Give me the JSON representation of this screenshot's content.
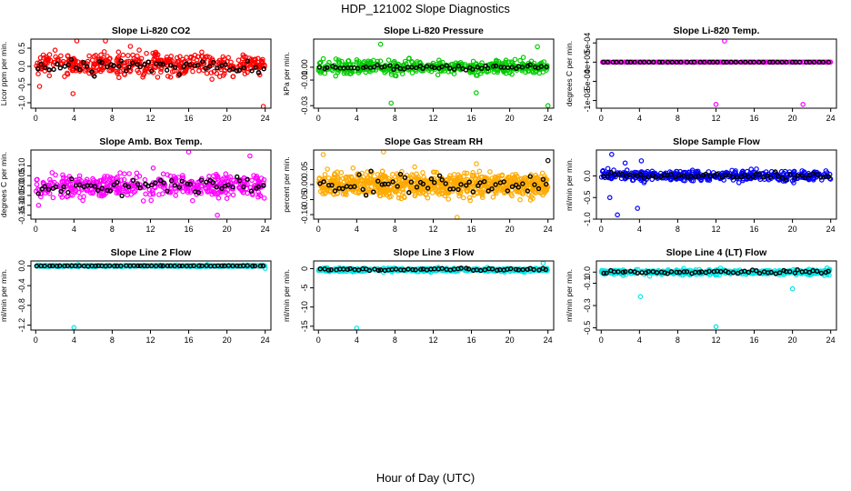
{
  "figure": {
    "title": "HDP_121002  Slope Diagnostics",
    "xlabel": "Hour of Day (UTC)"
  },
  "chart_data": [
    {
      "type": "scatter",
      "title": "Slope Li-820 CO2",
      "ylabel": "Licor ppm per min.",
      "xlim": [
        -0.5,
        24.6
      ],
      "ylim": [
        -1.15,
        0.75
      ],
      "xticks": [
        "0",
        "4",
        "8",
        "12",
        "16",
        "20",
        "24"
      ],
      "yticks": [
        {
          "v": -1.0,
          "label": "-1.0"
        },
        {
          "v": -0.5,
          "label": "-0.5"
        },
        {
          "v": 0.0,
          "label": "0.0"
        },
        {
          "v": 0.5,
          "label": "0.5"
        }
      ],
      "series": [
        {
          "name": "all",
          "color": "#ff0000",
          "n": 450,
          "center": 0.05,
          "spread": 0.28,
          "outliers": [
            [
              4.3,
              0.8
            ],
            [
              7.3,
              0.7
            ],
            [
              23.8,
              -1.1
            ],
            [
              0.4,
              -0.55
            ],
            [
              3.9,
              -0.75
            ],
            [
              9.9,
              0.55
            ]
          ]
        },
        {
          "name": "hourly",
          "color": "#000000",
          "n": 60,
          "center": 0.0,
          "spread": 0.15,
          "outliers": []
        }
      ]
    },
    {
      "type": "scatter",
      "title": "Slope Li-820 Pressure",
      "ylabel": "kPa per min.",
      "xlim": [
        -0.5,
        24.6
      ],
      "ylim": [
        -0.032,
        0.022
      ],
      "xticks": [
        "0",
        "4",
        "8",
        "12",
        "16",
        "20",
        "24"
      ],
      "yticks": [
        {
          "v": -0.03,
          "label": "-0.03"
        },
        {
          "v": -0.01,
          "label": "-0.01"
        },
        {
          "v": 0.0,
          "label": "0.00"
        }
      ],
      "series": [
        {
          "name": "all",
          "color": "#00cc00",
          "n": 450,
          "center": 0.0,
          "spread": 0.005,
          "outliers": [
            [
              7.6,
              -0.028
            ],
            [
              24.0,
              -0.03
            ],
            [
              16.5,
              -0.02
            ],
            [
              22.9,
              0.016
            ],
            [
              6.5,
              0.018
            ]
          ]
        },
        {
          "name": "hourly",
          "color": "#000000",
          "n": 60,
          "center": 0.0,
          "spread": 0.002,
          "outliers": []
        }
      ]
    },
    {
      "type": "scatter",
      "title": "Slope Li-820 Temp.",
      "ylabel": "degrees C per min.",
      "xlim": [
        -0.5,
        24.6
      ],
      "ylim": [
        -0.0012,
        0.0006
      ],
      "xticks": [
        "0",
        "4",
        "8",
        "12",
        "16",
        "20",
        "24"
      ],
      "yticks": [
        {
          "v": -0.001,
          "label": "-1e-03"
        },
        {
          "v": -0.0005,
          "label": "-5e-04"
        },
        {
          "v": 0.0,
          "label": "0e+00"
        },
        {
          "v": 0.0005,
          "label": "5e-04"
        }
      ],
      "series": [
        {
          "name": "all",
          "color": "#ff00ff",
          "n": 300,
          "center": 0.0,
          "spread": 0.0,
          "outliers": [
            [
              12.9,
              0.00055
            ],
            [
              12.0,
              -0.0011
            ],
            [
              21.1,
              -0.0011
            ]
          ]
        },
        {
          "name": "hourly",
          "color": "#000000",
          "n": 50,
          "center": 0.0,
          "spread": 0.0,
          "outliers": []
        }
      ]
    },
    {
      "type": "scatter",
      "title": "Slope Amb. Box Temp.",
      "ylabel": "degrees C per min.",
      "xlim": [
        -0.5,
        24.6
      ],
      "ylim": [
        -0.17,
        0.18
      ],
      "xticks": [
        "0",
        "4",
        "8",
        "12",
        "16",
        "20",
        "24"
      ],
      "yticks": [
        {
          "v": -0.15,
          "label": "-0.15"
        },
        {
          "v": -0.1,
          "label": "-0.10"
        },
        {
          "v": -0.05,
          "label": "-0.05"
        },
        {
          "v": 0.0,
          "label": "0.00"
        },
        {
          "v": 0.05,
          "label": "0.05"
        },
        {
          "v": 0.1,
          "label": "0.10"
        }
      ],
      "series": [
        {
          "name": "all",
          "color": "#ff00ff",
          "n": 450,
          "center": 0.0,
          "spread": 0.05,
          "outliers": [
            [
              16.0,
              0.17
            ],
            [
              19.0,
              -0.15
            ],
            [
              22.4,
              0.15
            ],
            [
              0.3,
              -0.1
            ]
          ]
        },
        {
          "name": "hourly",
          "color": "#000000",
          "n": 60,
          "center": 0.0,
          "spread": 0.035,
          "outliers": []
        }
      ]
    },
    {
      "type": "scatter",
      "title": "Slope Gas Stream RH",
      "ylabel": "percent per min.",
      "xlim": [
        -0.5,
        24.6
      ],
      "ylim": [
        -0.115,
        0.115
      ],
      "xticks": [
        "0",
        "4",
        "8",
        "12",
        "16",
        "20",
        "24"
      ],
      "yticks": [
        {
          "v": -0.1,
          "label": "-0.10"
        },
        {
          "v": -0.05,
          "label": "-0.05"
        },
        {
          "v": 0.0,
          "label": "0.00"
        },
        {
          "v": 0.05,
          "label": "0.05"
        }
      ],
      "series": [
        {
          "name": "all",
          "color": "#ffaa00",
          "n": 800,
          "center": 0.0,
          "spread": 0.035,
          "outliers": [
            [
              6.8,
              0.11
            ],
            [
              0.5,
              0.1
            ],
            [
              14.5,
              -0.11
            ]
          ]
        },
        {
          "name": "hourly",
          "color": "#000000",
          "n": 60,
          "center": 0.0,
          "spread": 0.03,
          "outliers": [
            [
              24.0,
              0.08
            ]
          ]
        }
      ]
    },
    {
      "type": "scatter",
      "title": "Slope Sample Flow",
      "ylabel": "ml/min per min.",
      "xlim": [
        -0.5,
        24.6
      ],
      "ylim": [
        -1.0,
        0.6
      ],
      "xticks": [
        "0",
        "4",
        "8",
        "12",
        "16",
        "20",
        "24"
      ],
      "yticks": [
        {
          "v": -1.0,
          "label": "-1.0"
        },
        {
          "v": -0.5,
          "label": "-0.5"
        },
        {
          "v": 0.0,
          "label": "0.0"
        }
      ],
      "series": [
        {
          "name": "all",
          "color": "#0000ff",
          "n": 450,
          "center": 0.0,
          "spread": 0.1,
          "outliers": [
            [
              1.1,
              0.5
            ],
            [
              0.9,
              -0.5
            ],
            [
              1.7,
              -0.9
            ],
            [
              3.8,
              -0.75
            ],
            [
              2.5,
              0.3
            ],
            [
              4.2,
              0.35
            ]
          ]
        },
        {
          "name": "hourly",
          "color": "#000000",
          "n": 60,
          "center": 0.0,
          "spread": 0.06,
          "outliers": []
        }
      ]
    },
    {
      "type": "scatter",
      "title": "Slope Line 2 Flow",
      "ylabel": "ml/min per min.",
      "xlim": [
        -0.5,
        24.6
      ],
      "ylim": [
        -1.3,
        0.1
      ],
      "xticks": [
        "0",
        "4",
        "8",
        "12",
        "16",
        "20",
        "24"
      ],
      "yticks": [
        {
          "v": -1.2,
          "label": "-1.2"
        },
        {
          "v": -0.8,
          "label": "-0.8"
        },
        {
          "v": -0.4,
          "label": "-0.4"
        },
        {
          "v": 0.0,
          "label": "0.0"
        }
      ],
      "series": [
        {
          "name": "all",
          "color": "#00e5e5",
          "n": 450,
          "center": 0.0,
          "spread": 0.012,
          "outliers": [
            [
              4.0,
              -1.25
            ],
            [
              24.0,
              -0.05
            ]
          ]
        },
        {
          "name": "hourly",
          "color": "#000000",
          "n": 60,
          "center": 0.0,
          "spread": 0.004,
          "outliers": []
        }
      ]
    },
    {
      "type": "scatter",
      "title": "Slope Line 3 Flow",
      "ylabel": "ml/min per min.",
      "xlim": [
        -0.5,
        24.6
      ],
      "ylim": [
        -16,
        2
      ],
      "xticks": [
        "0",
        "4",
        "8",
        "12",
        "16",
        "20",
        "24"
      ],
      "yticks": [
        {
          "v": -15,
          "label": "-15"
        },
        {
          "v": -10,
          "label": "-10"
        },
        {
          "v": -5,
          "label": "-5"
        },
        {
          "v": 0,
          "label": "0"
        }
      ],
      "series": [
        {
          "name": "all",
          "color": "#00e5e5",
          "n": 450,
          "center": -0.3,
          "spread": 0.4,
          "outliers": [
            [
              4.0,
              -15.5
            ],
            [
              23.5,
              1.4
            ]
          ]
        },
        {
          "name": "hourly",
          "color": "#000000",
          "n": 60,
          "center": -0.2,
          "spread": 0.3,
          "outliers": []
        }
      ]
    },
    {
      "type": "scatter",
      "title": "Slope Line 4 (LT) Flow",
      "ylabel": "ml/min per min.",
      "xlim": [
        -0.5,
        24.6
      ],
      "ylim": [
        -0.52,
        0.1
      ],
      "xticks": [
        "0",
        "4",
        "8",
        "12",
        "16",
        "20",
        "24"
      ],
      "yticks": [
        {
          "v": -0.5,
          "label": "-0.5"
        },
        {
          "v": -0.3,
          "label": "-0.3"
        },
        {
          "v": -0.1,
          "label": "-0.1"
        },
        {
          "v": 0.0,
          "label": "0.0"
        }
      ],
      "series": [
        {
          "name": "all",
          "color": "#00e5e5",
          "n": 450,
          "center": 0.0,
          "spread": 0.02,
          "outliers": [
            [
              4.1,
              -0.22
            ],
            [
              12.0,
              -0.49
            ],
            [
              20.0,
              -0.15
            ]
          ]
        },
        {
          "name": "hourly",
          "color": "#000000",
          "n": 60,
          "center": 0.0,
          "spread": 0.015,
          "outliers": []
        }
      ]
    }
  ]
}
